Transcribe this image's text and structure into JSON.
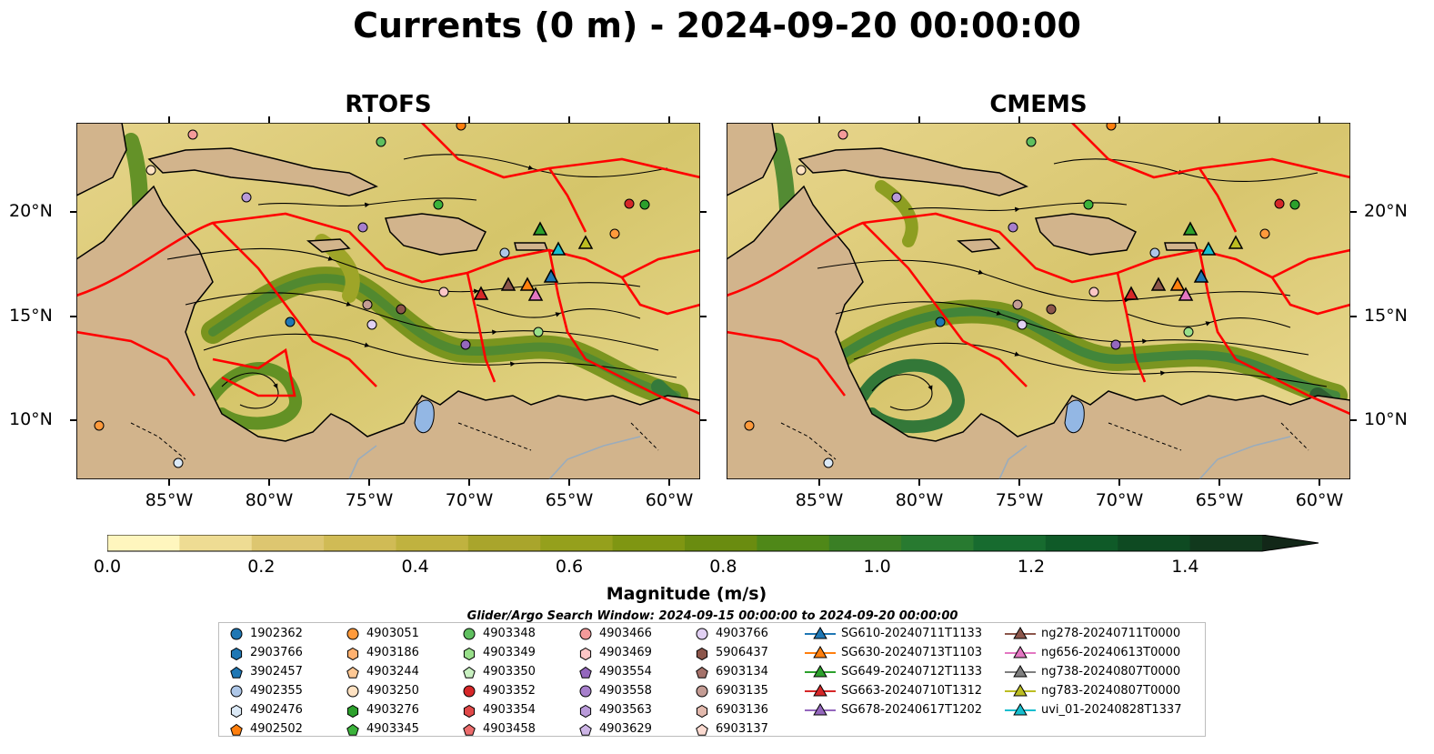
{
  "title": "Currents (0 m) - 2024-09-20 00:00:00",
  "panels": [
    {
      "title": "RTOFS"
    },
    {
      "title": "CMEMS"
    }
  ],
  "axes": {
    "lon_ticks": [
      "85°W",
      "80°W",
      "75°W",
      "70°W",
      "65°W",
      "60°W"
    ],
    "lat_ticks": [
      "20°N",
      "15°N",
      "10°N"
    ]
  },
  "colorbar": {
    "label": "Magnitude (m/s)",
    "ticks": [
      "0.0",
      "0.2",
      "0.4",
      "0.6",
      "0.8",
      "1.0",
      "1.2",
      "1.4"
    ],
    "range": [
      0.0,
      1.5
    ],
    "extend": "max",
    "colormap": [
      "#fff6be",
      "#eedc93",
      "#ddc670",
      "#d0bb55",
      "#c0b23f",
      "#a9a52c",
      "#95a01c",
      "#7f9612",
      "#6a8c10",
      "#4f8818",
      "#3a7f25",
      "#287a30",
      "#176b2f",
      "#0f5a28",
      "#0e4a22",
      "#11391d",
      "#122718"
    ]
  },
  "colors": {
    "land": "#d2b48c",
    "boundary": "#ff0000",
    "lake": "#93b7e4",
    "streamline": "#000000"
  },
  "search_window": "Glider/Argo Search Window: 2024-09-15 00:00:00 to 2024-09-20 00:00:00",
  "legend": [
    [
      {
        "label": "1902362",
        "marker": "circle",
        "color": "#1f77b4"
      },
      {
        "label": "2903766",
        "marker": "hexagon",
        "color": "#1f77b4"
      },
      {
        "label": "3902457",
        "marker": "pentagon",
        "color": "#1f77b4"
      },
      {
        "label": "4902355",
        "marker": "circle",
        "color": "#aec7e8"
      },
      {
        "label": "4902476",
        "marker": "hexagon",
        "color": "#dbe9f6"
      },
      {
        "label": "4902502",
        "marker": "pentagon",
        "color": "#ff7f0e"
      }
    ],
    [
      {
        "label": "4903051",
        "marker": "circle",
        "color": "#ff9a3c"
      },
      {
        "label": "4903186",
        "marker": "hexagon",
        "color": "#ffb170"
      },
      {
        "label": "4903244",
        "marker": "pentagon",
        "color": "#ffc894"
      },
      {
        "label": "4903250",
        "marker": "circle",
        "color": "#ffe2c2"
      },
      {
        "label": "4903276",
        "marker": "hexagon",
        "color": "#2ca02c"
      },
      {
        "label": "4903345",
        "marker": "pentagon",
        "color": "#3bb33b"
      }
    ],
    [
      {
        "label": "4903348",
        "marker": "circle",
        "color": "#5fbf5f"
      },
      {
        "label": "4903349",
        "marker": "hexagon",
        "color": "#98df8a"
      },
      {
        "label": "4903350",
        "marker": "pentagon",
        "color": "#c8f0c0"
      },
      {
        "label": "4903352",
        "marker": "circle",
        "color": "#d62728"
      },
      {
        "label": "4903354",
        "marker": "hexagon",
        "color": "#e04848"
      },
      {
        "label": "4903458",
        "marker": "pentagon",
        "color": "#ec6c6c"
      }
    ],
    [
      {
        "label": "4903466",
        "marker": "circle",
        "color": "#f49a9a"
      },
      {
        "label": "4903469",
        "marker": "hexagon",
        "color": "#fcc6c6"
      },
      {
        "label": "4903554",
        "marker": "pentagon",
        "color": "#9467bd"
      },
      {
        "label": "4903558",
        "marker": "circle",
        "color": "#a77fcc"
      },
      {
        "label": "4903563",
        "marker": "hexagon",
        "color": "#b99ad9"
      },
      {
        "label": "4903629",
        "marker": "pentagon",
        "color": "#cdb5e6"
      }
    ],
    [
      {
        "label": "4903766",
        "marker": "circle",
        "color": "#e1d0f3"
      },
      {
        "label": "5906437",
        "marker": "hexagon",
        "color": "#8c564b"
      },
      {
        "label": "6903134",
        "marker": "pentagon",
        "color": "#a5726a"
      },
      {
        "label": "6903135",
        "marker": "circle",
        "color": "#c49c94"
      },
      {
        "label": "6903136",
        "marker": "hexagon",
        "color": "#e2b9ad"
      },
      {
        "label": "6903137",
        "marker": "pentagon",
        "color": "#fbdad0"
      }
    ],
    [
      {
        "label": "SG610-20240711T1133",
        "marker": "triangle",
        "color": "#1f77b4"
      },
      {
        "label": "SG630-20240713T1103",
        "marker": "triangle",
        "color": "#ff7f0e"
      },
      {
        "label": "SG649-20240712T1133",
        "marker": "triangle",
        "color": "#2ca02c"
      },
      {
        "label": "SG663-20240710T1312",
        "marker": "triangle",
        "color": "#d62728"
      },
      {
        "label": "SG678-20240617T1202",
        "marker": "triangle",
        "color": "#9467bd"
      }
    ],
    [
      {
        "label": "ng278-20240711T0000",
        "marker": "triangle",
        "color": "#8c564b"
      },
      {
        "label": "ng656-20240613T0000",
        "marker": "triangle",
        "color": "#e377c2"
      },
      {
        "label": "ng738-20240807T0000",
        "marker": "triangle",
        "color": "#7f7f7f"
      },
      {
        "label": "ng783-20240807T0000",
        "marker": "triangle",
        "color": "#bcbd22"
      },
      {
        "label": "uvi_01-20240828T1337",
        "marker": "triangle",
        "color": "#17becf"
      }
    ]
  ]
}
